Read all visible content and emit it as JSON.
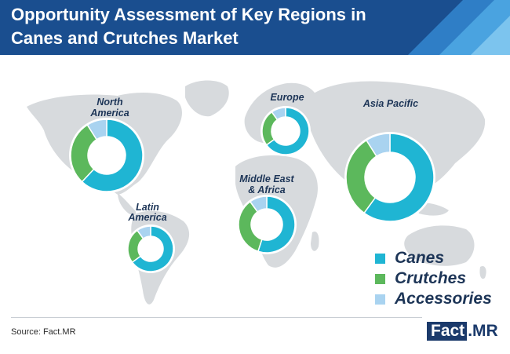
{
  "header": {
    "title_line1": "Opportunity Assessment of Key Regions in",
    "title_line2": "Canes and Crutches Market"
  },
  "colors": {
    "header_bg": "#1a4e8f",
    "canes": "#1fb5d3",
    "crutches": "#5cb85c",
    "accessories": "#a9d3f0",
    "map": "#d7dadd",
    "title_text": "#1d3557"
  },
  "legend": [
    {
      "label": "Canes",
      "color": "#1fb5d3"
    },
    {
      "label": "Crutches",
      "color": "#5cb85c"
    },
    {
      "label": "Accessories",
      "color": "#a9d3f0"
    }
  ],
  "chart_data": {
    "type": "pie",
    "series_names": [
      "Canes",
      "Crutches",
      "Accessories"
    ],
    "regions": [
      {
        "name": "North America",
        "label_lines": [
          "North",
          "America"
        ],
        "values": [
          62,
          29,
          9
        ]
      },
      {
        "name": "Europe",
        "label_lines": [
          "Europe"
        ],
        "values": [
          65,
          25,
          10
        ]
      },
      {
        "name": "Asia Pacific",
        "label_lines": [
          "Asia Pacific"
        ],
        "values": [
          60,
          31,
          9
        ]
      },
      {
        "name": "Middle East & Africa",
        "label_lines": [
          "Middle East",
          "& Africa"
        ],
        "values": [
          55,
          35,
          10
        ]
      },
      {
        "name": "Latin America",
        "label_lines": [
          "Latin",
          "America"
        ],
        "values": [
          65,
          25,
          10
        ]
      }
    ]
  },
  "footer": {
    "source": "Source: Fact.MR",
    "logo_fact": "Fact",
    "logo_dot": ".",
    "logo_mr": "MR"
  }
}
